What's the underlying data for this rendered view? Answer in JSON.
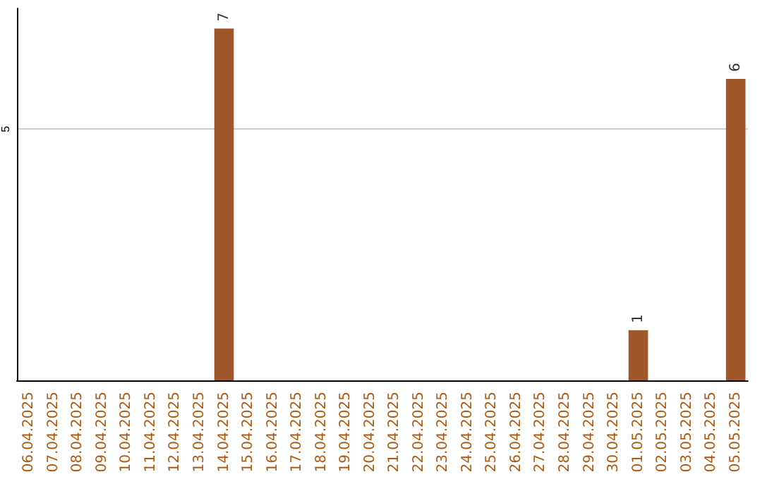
{
  "chart_data": {
    "type": "bar",
    "categories": [
      "06.04.2025",
      "07.04.2025",
      "08.04.2025",
      "09.04.2025",
      "10.04.2025",
      "11.04.2025",
      "12.04.2025",
      "13.04.2025",
      "14.04.2025",
      "15.04.2025",
      "16.04.2025",
      "17.04.2025",
      "18.04.2025",
      "19.04.2025",
      "20.04.2025",
      "21.04.2025",
      "22.04.2025",
      "23.04.2025",
      "24.04.2025",
      "25.04.2025",
      "26.04.2025",
      "27.04.2025",
      "28.04.2025",
      "29.04.2025",
      "30.04.2025",
      "01.05.2025",
      "02.05.2025",
      "03.05.2025",
      "04.05.2025",
      "05.05.2025"
    ],
    "values": [
      0,
      0,
      0,
      0,
      0,
      0,
      0,
      0,
      7,
      0,
      0,
      0,
      0,
      0,
      0,
      0,
      0,
      0,
      0,
      0,
      0,
      0,
      0,
      0,
      0,
      1,
      0,
      0,
      0,
      6
    ],
    "value_labels": [
      null,
      null,
      null,
      null,
      null,
      null,
      null,
      null,
      "7",
      null,
      null,
      null,
      null,
      null,
      null,
      null,
      null,
      null,
      null,
      null,
      null,
      null,
      null,
      null,
      null,
      "1",
      null,
      null,
      null,
      "6"
    ],
    "color": "#a0572a",
    "ylim": [
      0,
      7.4
    ],
    "yticks": [
      5
    ],
    "grid": "y"
  }
}
